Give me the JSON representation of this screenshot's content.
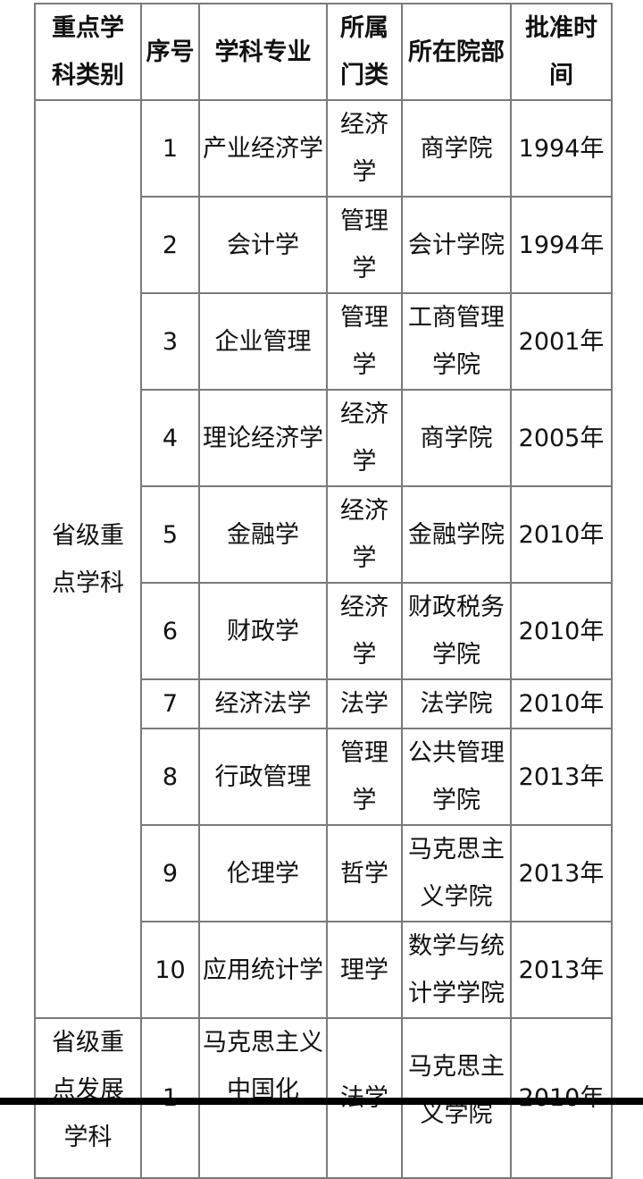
{
  "headers": [
    "重点学科类别",
    "序号",
    "学科专业",
    "所属门类",
    "所在院部",
    "批准时间"
  ],
  "groups": [
    {
      "category": "省级重点学科",
      "rows": [
        [
          "1",
          "产业经济学",
          "经济学",
          "商学院",
          "1994年"
        ],
        [
          "2",
          "会计学",
          "管理学",
          "会计学院",
          "1994年"
        ],
        [
          "3",
          "企业管理",
          "管理学",
          "工商管理学院",
          "2001年"
        ],
        [
          "4",
          "理论经济学",
          "经济学",
          "商学院",
          "2005年"
        ],
        [
          "5",
          "金融学",
          "经济学",
          "金融学院",
          "2010年"
        ],
        [
          "6",
          "财政学",
          "经济学",
          "财政税务学院",
          "2010年"
        ],
        [
          "7",
          "经济法学",
          "法学",
          "法学院",
          "2010年"
        ],
        [
          "8",
          "行政管理",
          "管理学",
          "公共管理学院",
          "2013年"
        ],
        [
          "9",
          "伦理学",
          "哲学",
          "马克思主义学院",
          "2013年"
        ],
        [
          "10",
          "应用统计学",
          "理学",
          "数学与统计学学院",
          "2013年"
        ]
      ]
    },
    {
      "category": "省级重点发展学科",
      "rows": [
        [
          "1",
          "马克思主义中国化",
          "法学",
          "马克思主义学院",
          "2010年"
        ]
      ]
    }
  ]
}
